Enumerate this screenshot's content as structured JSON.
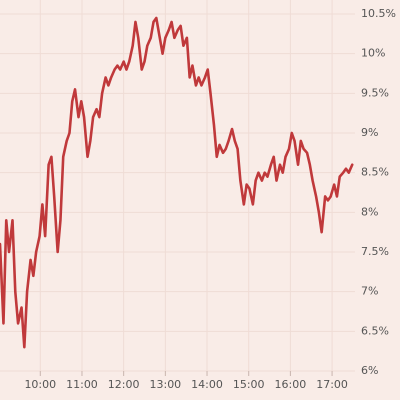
{
  "chart_data": {
    "type": "line",
    "x": [
      "09:02",
      "09:07",
      "09:11",
      "09:15",
      "09:20",
      "09:24",
      "09:28",
      "09:33",
      "09:37",
      "09:41",
      "09:46",
      "09:50",
      "09:54",
      "09:59",
      "10:03",
      "10:07",
      "10:12",
      "10:16",
      "10:20",
      "10:25",
      "10:29",
      "10:33",
      "10:38",
      "10:42",
      "10:46",
      "10:50",
      "10:55",
      "10:59",
      "11:03",
      "11:08",
      "11:12",
      "11:16",
      "11:21",
      "11:25",
      "11:29",
      "11:34",
      "11:38",
      "11:42",
      "11:47",
      "11:51",
      "11:55",
      "12:00",
      "12:04",
      "12:08",
      "12:13",
      "12:17",
      "12:21",
      "12:26",
      "12:30",
      "12:34",
      "12:39",
      "12:43",
      "12:47",
      "12:52",
      "12:56",
      "13:00",
      "13:05",
      "13:09",
      "13:13",
      "13:18",
      "13:22",
      "13:26",
      "13:31",
      "13:35",
      "13:39",
      "13:44",
      "13:48",
      "13:52",
      "13:57",
      "14:01",
      "14:05",
      "14:10",
      "14:14",
      "14:18",
      "14:23",
      "14:27",
      "14:31",
      "14:36",
      "14:40",
      "14:44",
      "14:48",
      "14:53",
      "14:57",
      "15:01",
      "15:06",
      "15:10",
      "15:14",
      "15:19",
      "15:23",
      "15:27",
      "15:32",
      "15:36",
      "15:40",
      "15:45",
      "15:49",
      "15:53",
      "15:58",
      "16:02",
      "16:06",
      "16:11",
      "16:15",
      "16:19",
      "16:24",
      "16:28",
      "16:32",
      "16:37",
      "16:41",
      "16:45",
      "16:50",
      "16:54",
      "16:58",
      "17:03",
      "17:07",
      "17:11",
      "17:16",
      "17:20",
      "17:24",
      "17:29"
    ],
    "series": [
      {
        "color": "#c0393b",
        "values": [
          7.6,
          6.6,
          7.9,
          7.5,
          7.9,
          7.0,
          6.6,
          6.8,
          6.3,
          7.0,
          7.4,
          7.2,
          7.5,
          7.7,
          8.1,
          7.7,
          8.6,
          8.7,
          8.2,
          7.5,
          7.9,
          8.7,
          8.9,
          9.0,
          9.4,
          9.55,
          9.2,
          9.4,
          9.2,
          8.7,
          8.9,
          9.2,
          9.3,
          9.2,
          9.5,
          9.7,
          9.6,
          9.7,
          9.8,
          9.85,
          9.8,
          9.9,
          9.8,
          9.9,
          10.1,
          10.4,
          10.2,
          9.8,
          9.9,
          10.1,
          10.2,
          10.4,
          10.45,
          10.2,
          10.0,
          10.2,
          10.3,
          10.4,
          10.2,
          10.3,
          10.35,
          10.1,
          10.2,
          9.7,
          9.85,
          9.6,
          9.7,
          9.6,
          9.7,
          9.8,
          9.5,
          9.1,
          8.7,
          8.85,
          8.75,
          8.8,
          8.9,
          9.05,
          8.9,
          8.8,
          8.4,
          8.1,
          8.35,
          8.3,
          8.1,
          8.4,
          8.5,
          8.4,
          8.5,
          8.45,
          8.6,
          8.7,
          8.4,
          8.6,
          8.5,
          8.7,
          8.8,
          9.0,
          8.9,
          8.6,
          8.9,
          8.8,
          8.75,
          8.6,
          8.4,
          8.2,
          8.0,
          7.75,
          8.2,
          8.15,
          8.2,
          8.35,
          8.2,
          8.45,
          8.5,
          8.55,
          8.5,
          8.6
        ]
      }
    ],
    "xlim": [
      "09:02",
      "17:33"
    ],
    "xticks": [
      "10:00",
      "11:00",
      "12:00",
      "13:00",
      "14:00",
      "15:00",
      "16:00",
      "17:00"
    ],
    "ylim": [
      6,
      10.5
    ],
    "yticks": [
      {
        "value": 6,
        "label": "6%"
      },
      {
        "value": 6.5,
        "label": "6.5%"
      },
      {
        "value": 7,
        "label": "7%"
      },
      {
        "value": 7.5,
        "label": "7.5%"
      },
      {
        "value": 8,
        "label": "8%"
      },
      {
        "value": 8.5,
        "label": "8.5%"
      },
      {
        "value": 9,
        "label": "9%"
      },
      {
        "value": 9.5,
        "label": "9.5%"
      },
      {
        "value": 10,
        "label": "10%"
      },
      {
        "value": 10.5,
        "label": "10.5%"
      }
    ],
    "grid": true
  }
}
